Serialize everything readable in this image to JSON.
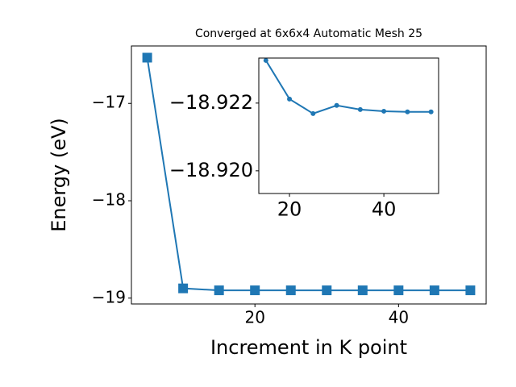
{
  "chart_data": [
    {
      "type": "line",
      "title": "Converged at 6x6x4 Automatic Mesh 25",
      "x_label": "Increment in K point",
      "y_label": "Energy (eV)",
      "x": [
        5,
        10,
        15,
        20,
        25,
        30,
        35,
        40,
        45,
        50
      ],
      "values": [
        -16.53,
        -18.9,
        -18.92,
        -18.92,
        -18.92,
        -18.92,
        -18.92,
        -18.92,
        -18.92,
        -18.92
      ],
      "color": "#1f77b4",
      "marker": "square",
      "xlim": [
        2.8,
        52.2
      ],
      "ylim": [
        -19.06,
        -16.41
      ],
      "xticks": [
        20,
        40
      ],
      "yticks": [
        {
          "value": -19,
          "label": "−19"
        },
        {
          "value": -18,
          "label": "−18"
        },
        {
          "value": -17,
          "label": "−17"
        }
      ]
    },
    {
      "type": "line",
      "x": [
        15,
        20,
        25,
        30,
        35,
        40,
        45,
        50
      ],
      "values": [
        -18.92326,
        -18.92212,
        -18.92169,
        -18.92193,
        -18.92181,
        -18.92176,
        -18.92174,
        -18.92174
      ],
      "color": "#1f77b4",
      "marker": "circle",
      "xlim": [
        13.5,
        51.6
      ],
      "ylim": [
        -18.91933,
        -18.92333
      ],
      "xticks": [
        20,
        40
      ],
      "yticks": [
        {
          "value": -18.922,
          "label": "−18.922"
        },
        {
          "value": -18.92,
          "label": "−18.920"
        }
      ]
    }
  ]
}
